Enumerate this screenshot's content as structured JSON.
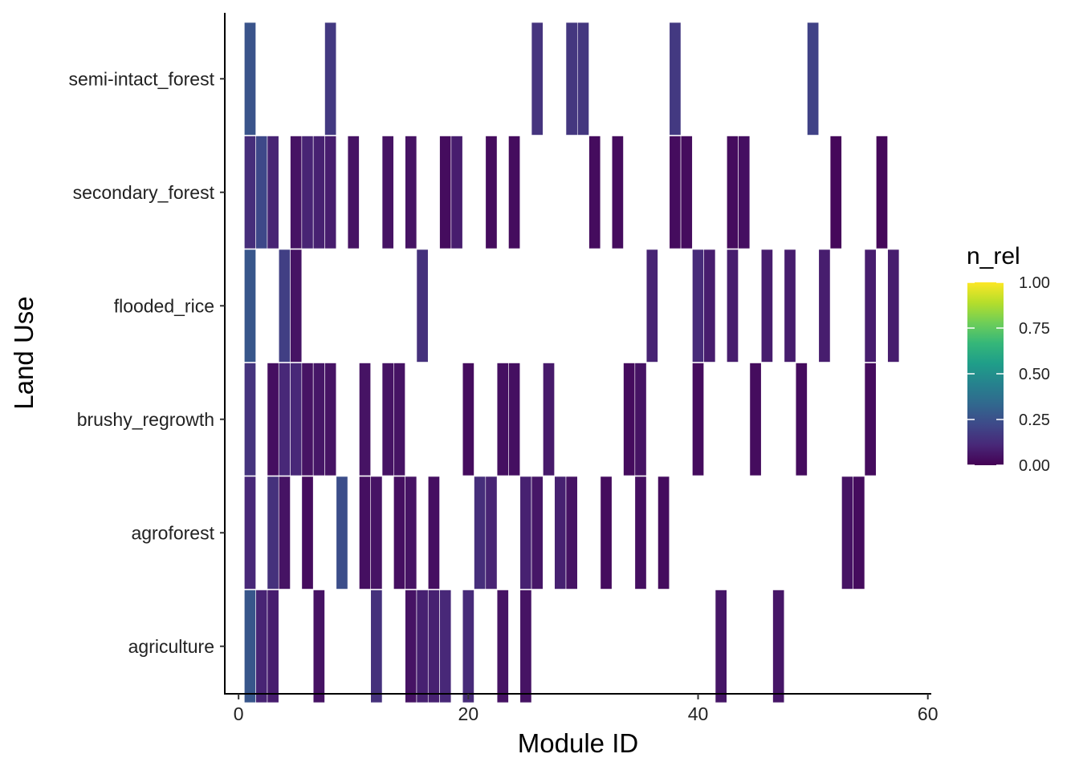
{
  "chart_data": {
    "type": "heatmap",
    "title": "",
    "xlabel": "Module ID",
    "ylabel": "Land Use",
    "xlim": [
      -1.2,
      60.3
    ],
    "x_ticks": [
      0,
      20,
      40,
      60
    ],
    "x_tick_labels": [
      "0",
      "20",
      "40",
      "60"
    ],
    "categories": [
      "agriculture",
      "agroforest",
      "brushy_regrowth",
      "flooded_rice",
      "secondary_forest",
      "semi-intact_forest"
    ],
    "grid": false,
    "legend": {
      "title": "n_rel",
      "placement": "right",
      "range": [
        0,
        1
      ],
      "ticks": [
        0,
        0.25,
        0.5,
        0.75,
        1
      ],
      "tick_labels": [
        "0.00",
        "0.25",
        "0.50",
        "0.75",
        "1.00"
      ],
      "colors": [
        "#440154",
        "#482878",
        "#3e4989",
        "#31688e",
        "#26828e",
        "#1f9e89",
        "#35b779",
        "#6ece58",
        "#b5de2b",
        "#fde725"
      ]
    },
    "cells": [
      {
        "row": "semi-intact_forest",
        "values": [
          [
            1,
            0.26
          ],
          [
            8,
            0.17
          ],
          [
            26,
            0.15
          ],
          [
            29,
            0.16
          ],
          [
            30,
            0.16
          ],
          [
            38,
            0.17
          ],
          [
            50,
            0.2
          ]
        ]
      },
      {
        "row": "secondary_forest",
        "values": [
          [
            1,
            0.13
          ],
          [
            2,
            0.22
          ],
          [
            3,
            0.1
          ],
          [
            5,
            0.05
          ],
          [
            6,
            0.1
          ],
          [
            7,
            0.09
          ],
          [
            8,
            0.08
          ],
          [
            10,
            0.05
          ],
          [
            13,
            0.05
          ],
          [
            15,
            0.05
          ],
          [
            18,
            0.03
          ],
          [
            19,
            0.08
          ],
          [
            22,
            0.03
          ],
          [
            24,
            0.03
          ],
          [
            31,
            0.03
          ],
          [
            33,
            0.03
          ],
          [
            38,
            0.03
          ],
          [
            39,
            0.03
          ],
          [
            43,
            0.03
          ],
          [
            44,
            0.04
          ],
          [
            52,
            0.02
          ],
          [
            56,
            0.02
          ]
        ]
      },
      {
        "row": "flooded_rice",
        "values": [
          [
            1,
            0.27
          ],
          [
            4,
            0.19
          ],
          [
            5,
            0.05
          ],
          [
            16,
            0.14
          ],
          [
            36,
            0.1
          ],
          [
            40,
            0.12
          ],
          [
            41,
            0.08
          ],
          [
            43,
            0.08
          ],
          [
            46,
            0.08
          ],
          [
            48,
            0.08
          ],
          [
            51,
            0.08
          ],
          [
            55,
            0.08
          ],
          [
            57,
            0.08
          ]
        ]
      },
      {
        "row": "brushy_regrowth",
        "values": [
          [
            1,
            0.15
          ],
          [
            3,
            0.04
          ],
          [
            4,
            0.11
          ],
          [
            5,
            0.11
          ],
          [
            6,
            0.05
          ],
          [
            7,
            0.06
          ],
          [
            8,
            0.05
          ],
          [
            11,
            0.05
          ],
          [
            13,
            0.05
          ],
          [
            14,
            0.05
          ],
          [
            20,
            0.03
          ],
          [
            23,
            0.04
          ],
          [
            24,
            0.04
          ],
          [
            27,
            0.07
          ],
          [
            34,
            0.03
          ],
          [
            35,
            0.05
          ],
          [
            40,
            0.03
          ],
          [
            45,
            0.03
          ],
          [
            49,
            0.03
          ],
          [
            55,
            0.03
          ]
        ]
      },
      {
        "row": "agroforest",
        "values": [
          [
            1,
            0.11
          ],
          [
            3,
            0.14
          ],
          [
            4,
            0.05
          ],
          [
            6,
            0.03
          ],
          [
            9,
            0.24
          ],
          [
            11,
            0.04
          ],
          [
            12,
            0.05
          ],
          [
            14,
            0.04
          ],
          [
            15,
            0.05
          ],
          [
            17,
            0.04
          ],
          [
            21,
            0.13
          ],
          [
            22,
            0.1
          ],
          [
            25,
            0.09
          ],
          [
            26,
            0.06
          ],
          [
            28,
            0.09
          ],
          [
            29,
            0.05
          ],
          [
            32,
            0.03
          ],
          [
            35,
            0.04
          ],
          [
            37,
            0.03
          ],
          [
            53,
            0.05
          ],
          [
            54,
            0.03
          ]
        ]
      },
      {
        "row": "agriculture",
        "values": [
          [
            1,
            0.27
          ],
          [
            2,
            0.1
          ],
          [
            3,
            0.08
          ],
          [
            7,
            0.05
          ],
          [
            12,
            0.14
          ],
          [
            15,
            0.05
          ],
          [
            16,
            0.09
          ],
          [
            17,
            0.09
          ],
          [
            18,
            0.11
          ],
          [
            20,
            0.12
          ],
          [
            23,
            0.05
          ],
          [
            25,
            0.05
          ],
          [
            42,
            0.06
          ],
          [
            47,
            0.06
          ]
        ]
      }
    ]
  }
}
